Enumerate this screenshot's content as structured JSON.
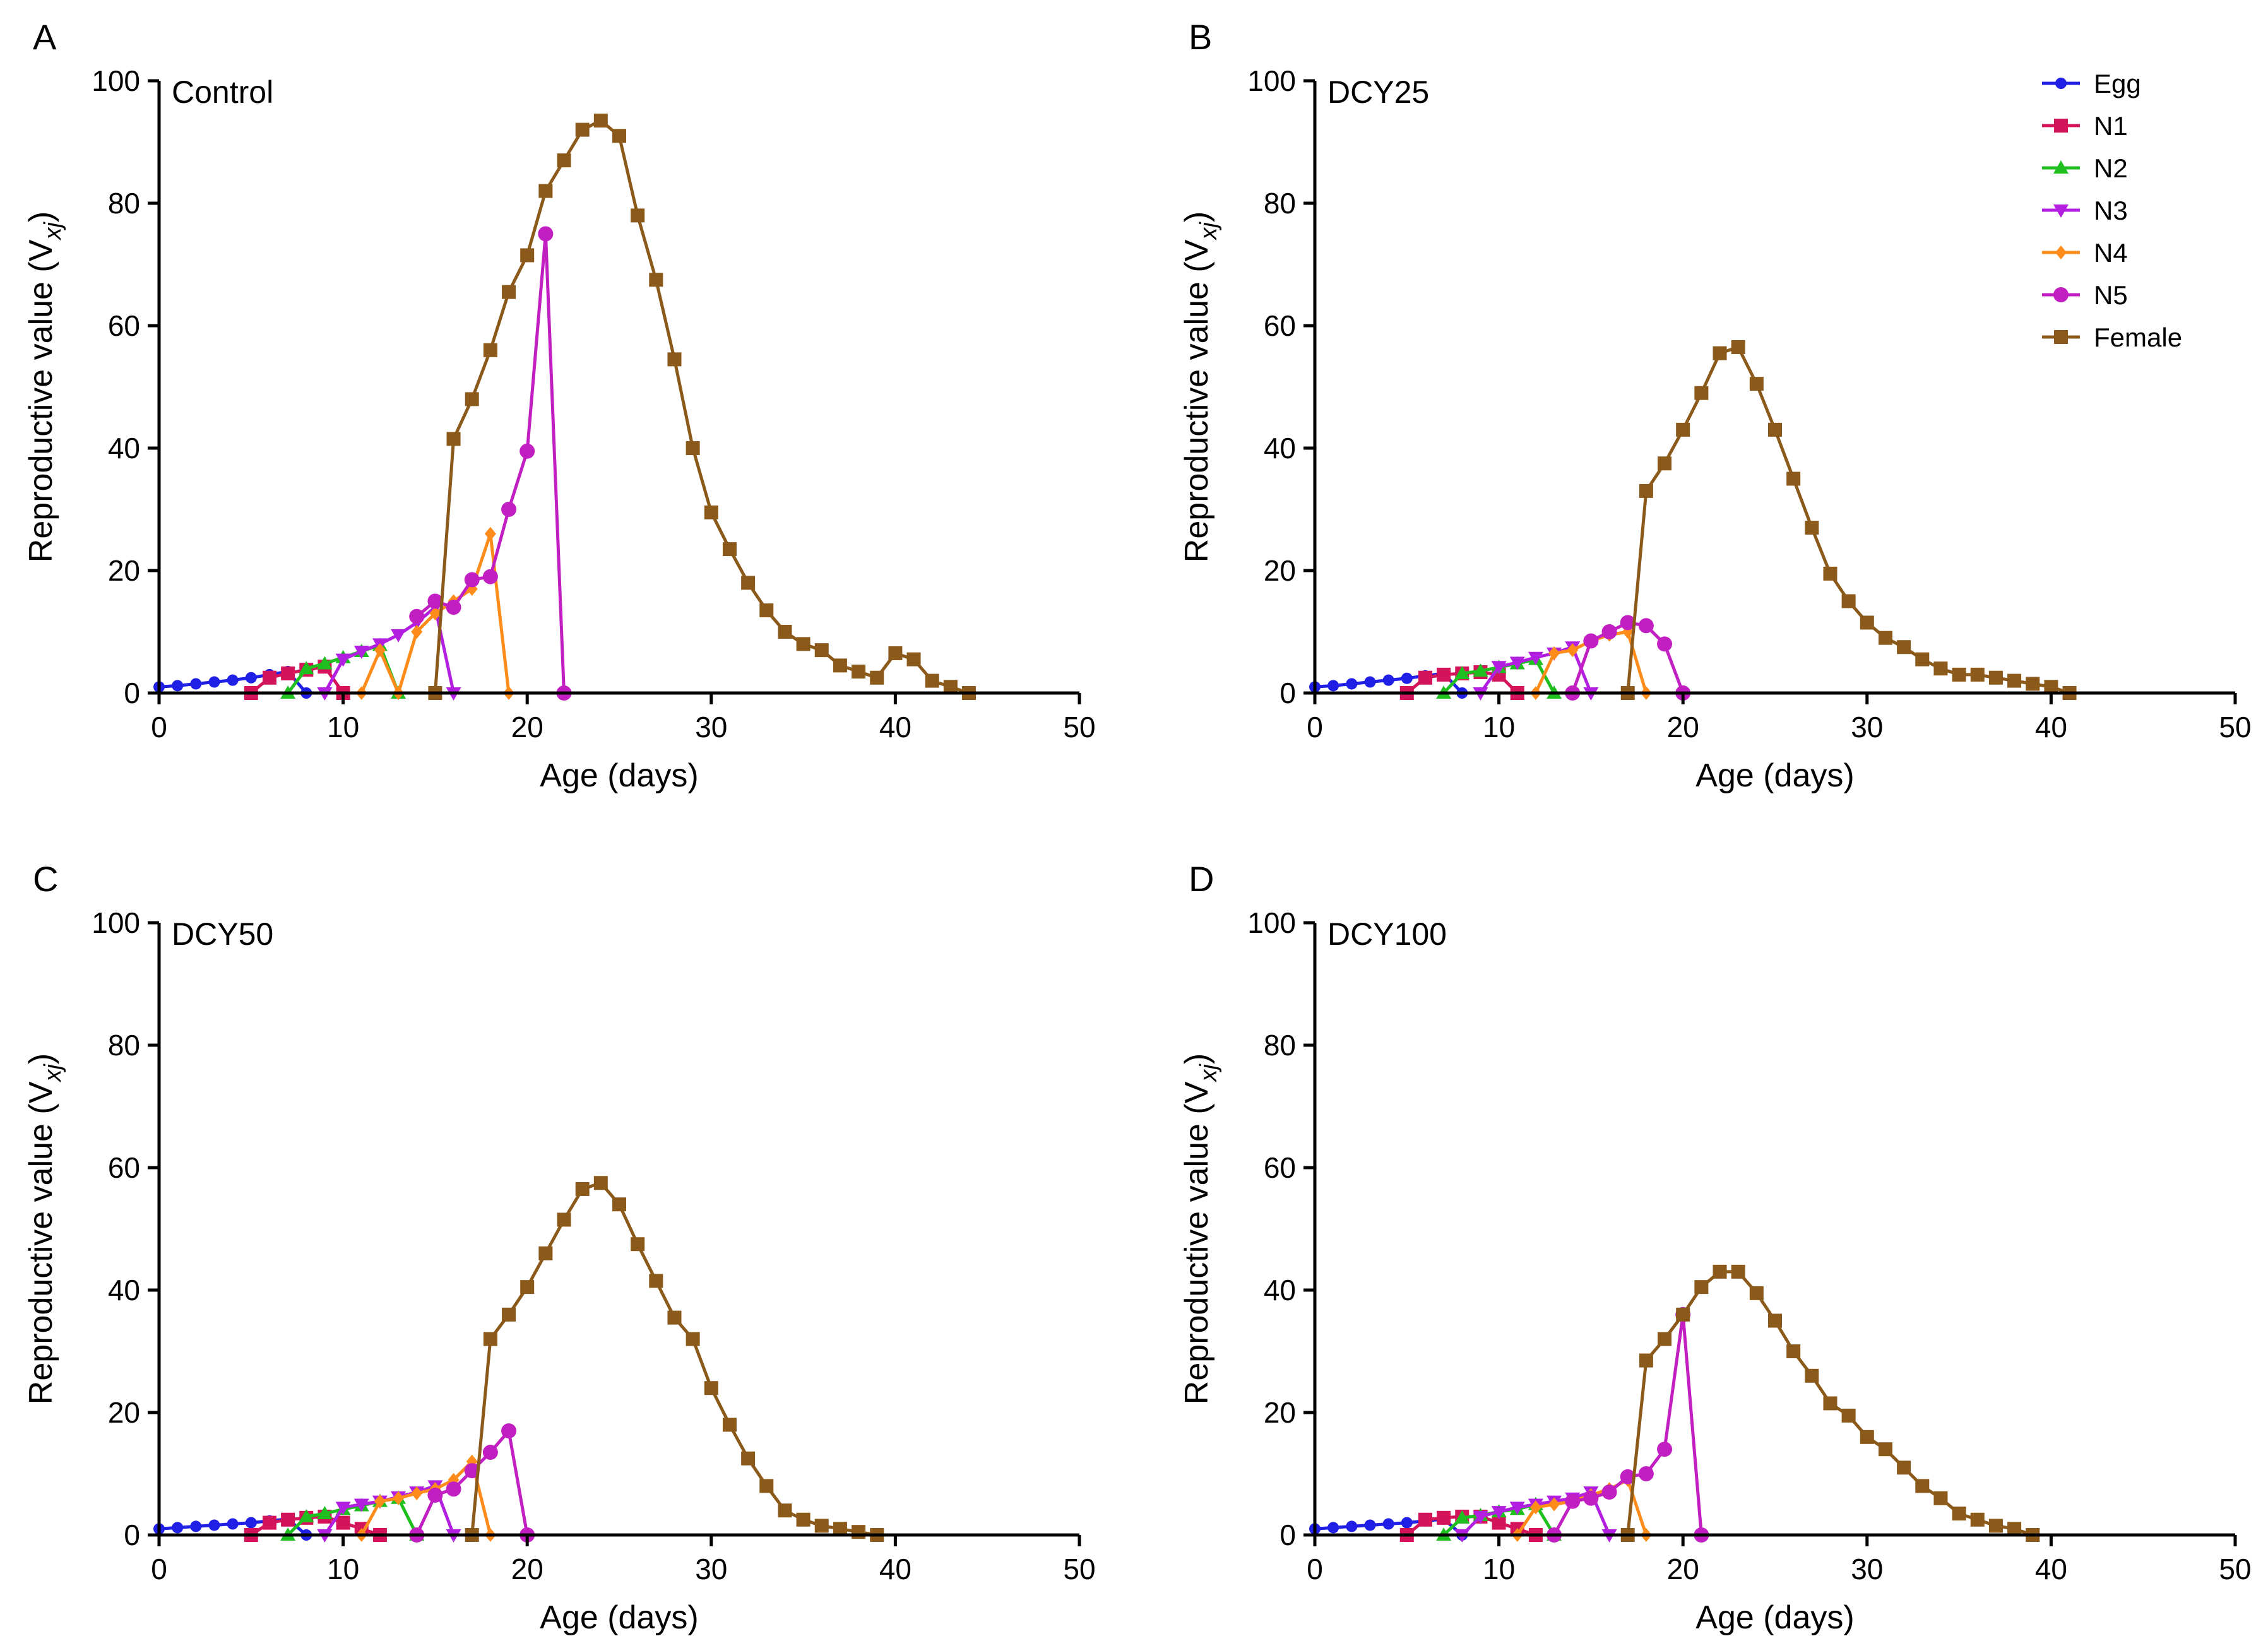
{
  "colors": {
    "Egg": "#1f1fe6",
    "N1": "#d4145a",
    "N2": "#1fbf1f",
    "N3": "#b31fe0",
    "N4": "#ff8c1a",
    "N5": "#c21fc2",
    "Female": "#8b5a1b"
  },
  "markers": {
    "Egg": "circle-small",
    "N1": "square",
    "N2": "triangle-up",
    "N3": "triangle-down",
    "N4": "diamond",
    "N5": "circle",
    "Female": "square"
  },
  "legend": {
    "placement": "top-right of panel B",
    "entries": [
      "Egg",
      "N1",
      "N2",
      "N3",
      "N4",
      "N5",
      "Female"
    ]
  },
  "chart_data": [
    {
      "type": "line",
      "panel_letter": "A",
      "title": "Control",
      "xlabel": "Age (days)",
      "ylabel_main": "Reproductive value (V",
      "ylabel_sub": "xj",
      "ylabel_end": ")",
      "xlim": [
        0,
        50
      ],
      "ylim": [
        0,
        100
      ],
      "xticks": [
        "0",
        "10",
        "20",
        "30",
        "40",
        "50"
      ],
      "yticks": [
        "0",
        "20",
        "40",
        "60",
        "80",
        "100"
      ],
      "grid": false,
      "series": [
        {
          "name": "Egg",
          "x": [
            0,
            1,
            2,
            3,
            4,
            5,
            6,
            7,
            8
          ],
          "y": [
            1.0,
            1.2,
            1.5,
            1.8,
            2.1,
            2.5,
            3.0,
            3.5,
            0
          ]
        },
        {
          "name": "N1",
          "x": [
            5,
            6,
            7,
            8,
            9,
            10
          ],
          "y": [
            0,
            2.5,
            3.2,
            3.8,
            4.3,
            0
          ]
        },
        {
          "name": "N2",
          "x": [
            7,
            8,
            9,
            10,
            11,
            12,
            13
          ],
          "y": [
            0,
            4.0,
            4.8,
            5.8,
            6.8,
            7.8,
            0
          ]
        },
        {
          "name": "N3",
          "x": [
            9,
            10,
            11,
            12,
            13,
            14,
            15,
            16
          ],
          "y": [
            0,
            5.5,
            6.8,
            8.0,
            9.5,
            11.5,
            14.0,
            0
          ]
        },
        {
          "name": "N4",
          "x": [
            11,
            12,
            13,
            14,
            15,
            16,
            17,
            18,
            19
          ],
          "y": [
            0,
            7.0,
            0,
            10.0,
            13.0,
            15.0,
            17.0,
            26.0,
            0
          ]
        },
        {
          "name": "N5",
          "x": [
            14,
            15,
            16,
            17,
            18,
            19,
            20,
            21,
            22
          ],
          "y": [
            12.5,
            15.0,
            14.0,
            18.5,
            19.0,
            30.0,
            39.5,
            75.0,
            0
          ]
        },
        {
          "name": "Female",
          "x": [
            15,
            16,
            17,
            18,
            19,
            20,
            21,
            22,
            23,
            24,
            25,
            26,
            27,
            28,
            29,
            30,
            31,
            32,
            33,
            34,
            35,
            36,
            37,
            38,
            39,
            40,
            41,
            42,
            43,
            44
          ],
          "y": [
            0,
            41.5,
            48.0,
            56.0,
            65.5,
            71.5,
            82.0,
            87.0,
            92.0,
            93.5,
            91.0,
            78.0,
            67.5,
            54.5,
            40.0,
            29.5,
            23.5,
            18.0,
            13.5,
            10.0,
            8.0,
            7.0,
            4.5,
            3.5,
            2.5,
            6.5,
            5.5,
            2.0,
            1.0,
            0
          ]
        }
      ]
    },
    {
      "type": "line",
      "panel_letter": "B",
      "title": "DCY25",
      "xlabel": "Age (days)",
      "ylabel_main": "Reproductive value (V",
      "ylabel_sub": "xj",
      "ylabel_end": ")",
      "xlim": [
        0,
        50
      ],
      "ylim": [
        0,
        100
      ],
      "xticks": [
        "0",
        "10",
        "20",
        "30",
        "40",
        "50"
      ],
      "yticks": [
        "0",
        "20",
        "40",
        "60",
        "80",
        "100"
      ],
      "grid": false,
      "series": [
        {
          "name": "Egg",
          "x": [
            0,
            1,
            2,
            3,
            4,
            5,
            6,
            7,
            8
          ],
          "y": [
            1.0,
            1.2,
            1.5,
            1.8,
            2.1,
            2.4,
            2.8,
            3.2,
            0
          ]
        },
        {
          "name": "N1",
          "x": [
            5,
            6,
            7,
            8,
            9,
            10,
            11
          ],
          "y": [
            0,
            2.5,
            3.0,
            3.2,
            3.4,
            3.0,
            0
          ]
        },
        {
          "name": "N2",
          "x": [
            7,
            8,
            9,
            10,
            11,
            12,
            13
          ],
          "y": [
            0,
            3.2,
            3.6,
            4.2,
            4.8,
            5.5,
            0
          ]
        },
        {
          "name": "N3",
          "x": [
            9,
            10,
            11,
            12,
            13,
            14,
            15
          ],
          "y": [
            0,
            4.3,
            5.0,
            5.8,
            6.5,
            7.5,
            0
          ]
        },
        {
          "name": "N4",
          "x": [
            12,
            13,
            14,
            15,
            16,
            17,
            18
          ],
          "y": [
            0,
            6.5,
            7.0,
            8.5,
            9.5,
            10.0,
            0
          ]
        },
        {
          "name": "N5",
          "x": [
            14,
            15,
            16,
            17,
            18,
            19,
            20
          ],
          "y": [
            0,
            8.5,
            10.0,
            11.5,
            11.0,
            8.0,
            0
          ]
        },
        {
          "name": "Female",
          "x": [
            17,
            18,
            19,
            20,
            21,
            22,
            23,
            24,
            25,
            26,
            27,
            28,
            29,
            30,
            31,
            32,
            33,
            34,
            35,
            36,
            37,
            38,
            39,
            40,
            41
          ],
          "y": [
            0,
            33.0,
            37.5,
            43.0,
            49.0,
            55.5,
            56.5,
            50.5,
            43.0,
            35.0,
            27.0,
            19.5,
            15.0,
            11.5,
            9.0,
            7.5,
            5.5,
            4.0,
            3.0,
            3.0,
            2.5,
            2.0,
            1.5,
            1.0,
            0
          ]
        }
      ]
    },
    {
      "type": "line",
      "panel_letter": "C",
      "title": "DCY50",
      "xlabel": "Age (days)",
      "ylabel_main": "Reproductive value (V",
      "ylabel_sub": "xj",
      "ylabel_end": ")",
      "xlim": [
        0,
        50
      ],
      "ylim": [
        0,
        100
      ],
      "xticks": [
        "0",
        "10",
        "20",
        "30",
        "40",
        "50"
      ],
      "yticks": [
        "0",
        "20",
        "40",
        "60",
        "80",
        "100"
      ],
      "grid": false,
      "series": [
        {
          "name": "Egg",
          "x": [
            0,
            1,
            2,
            3,
            4,
            5,
            6,
            7,
            8
          ],
          "y": [
            1.0,
            1.2,
            1.4,
            1.6,
            1.8,
            2.0,
            2.3,
            2.6,
            0
          ]
        },
        {
          "name": "N1",
          "x": [
            5,
            6,
            7,
            8,
            9,
            10,
            11,
            12
          ],
          "y": [
            0,
            2.0,
            2.5,
            2.8,
            3.0,
            2.0,
            1.0,
            0
          ]
        },
        {
          "name": "N2",
          "x": [
            7,
            8,
            9,
            10,
            11,
            12,
            13,
            14
          ],
          "y": [
            0,
            3.0,
            3.5,
            4.2,
            4.8,
            5.5,
            6.0,
            0
          ]
        },
        {
          "name": "N3",
          "x": [
            9,
            10,
            11,
            12,
            13,
            14,
            15,
            16
          ],
          "y": [
            0,
            4.5,
            5.0,
            5.5,
            6.2,
            7.0,
            8.0,
            0
          ]
        },
        {
          "name": "N4",
          "x": [
            11,
            12,
            13,
            14,
            15,
            16,
            17,
            18
          ],
          "y": [
            0,
            5.5,
            6.0,
            6.8,
            7.5,
            9.0,
            12.0,
            0
          ]
        },
        {
          "name": "N5",
          "x": [
            14,
            15,
            16,
            17,
            18,
            19,
            20
          ],
          "y": [
            0,
            6.5,
            7.5,
            10.5,
            13.5,
            17.0,
            0
          ]
        },
        {
          "name": "Female",
          "x": [
            17,
            18,
            19,
            20,
            21,
            22,
            23,
            24,
            25,
            26,
            27,
            28,
            29,
            30,
            31,
            32,
            33,
            34,
            35,
            36,
            37,
            38,
            39
          ],
          "y": [
            0,
            32.0,
            36.0,
            40.5,
            46.0,
            51.5,
            56.5,
            57.5,
            54.0,
            47.5,
            41.5,
            35.5,
            32.0,
            24.0,
            18.0,
            12.5,
            8.0,
            4.0,
            2.5,
            1.5,
            1.0,
            0.5,
            0
          ]
        }
      ]
    },
    {
      "type": "line",
      "panel_letter": "D",
      "title": "DCY100",
      "xlabel": "Age (days)",
      "ylabel_main": "Reproductive value (V",
      "ylabel_sub": "xj",
      "ylabel_end": ")",
      "xlim": [
        0,
        50
      ],
      "ylim": [
        0,
        100
      ],
      "xticks": [
        "0",
        "10",
        "20",
        "30",
        "40",
        "50"
      ],
      "yticks": [
        "0",
        "20",
        "40",
        "60",
        "80",
        "100"
      ],
      "grid": false,
      "series": [
        {
          "name": "Egg",
          "x": [
            0,
            1,
            2,
            3,
            4,
            5,
            6,
            7,
            8
          ],
          "y": [
            1.0,
            1.2,
            1.4,
            1.6,
            1.8,
            2.0,
            2.3,
            2.6,
            0
          ]
        },
        {
          "name": "N1",
          "x": [
            5,
            6,
            7,
            8,
            9,
            10,
            11,
            12
          ],
          "y": [
            0,
            2.5,
            2.8,
            3.0,
            3.0,
            2.0,
            1.0,
            0
          ]
        },
        {
          "name": "N2",
          "x": [
            7,
            8,
            9,
            10,
            11,
            12,
            13
          ],
          "y": [
            0,
            2.8,
            3.2,
            3.8,
            4.2,
            5.0,
            0
          ]
        },
        {
          "name": "N3",
          "x": [
            8,
            9,
            10,
            11,
            12,
            13,
            14,
            15,
            16
          ],
          "y": [
            0,
            3.0,
            3.8,
            4.5,
            5.0,
            5.5,
            6.0,
            7.0,
            0
          ]
        },
        {
          "name": "N4",
          "x": [
            11,
            12,
            13,
            14,
            15,
            16,
            17,
            18
          ],
          "y": [
            0,
            4.5,
            5.0,
            5.5,
            6.5,
            7.5,
            9.0,
            0
          ]
        },
        {
          "name": "N5",
          "x": [
            13,
            14,
            15,
            16,
            17,
            18,
            19,
            20,
            21
          ],
          "y": [
            0,
            5.5,
            6.0,
            7.0,
            9.5,
            10.0,
            14.0,
            36.0,
            0
          ]
        },
        {
          "name": "Female",
          "x": [
            17,
            18,
            19,
            20,
            21,
            22,
            23,
            24,
            25,
            26,
            27,
            28,
            29,
            30,
            31,
            32,
            33,
            34,
            35,
            36,
            37,
            38,
            39
          ],
          "y": [
            0,
            28.5,
            32.0,
            36.0,
            40.5,
            43.0,
            43.0,
            39.5,
            35.0,
            30.0,
            26.0,
            21.5,
            19.5,
            16.0,
            14.0,
            11.0,
            8.0,
            6.0,
            3.5,
            2.5,
            1.5,
            1.0,
            0
          ]
        }
      ]
    }
  ]
}
